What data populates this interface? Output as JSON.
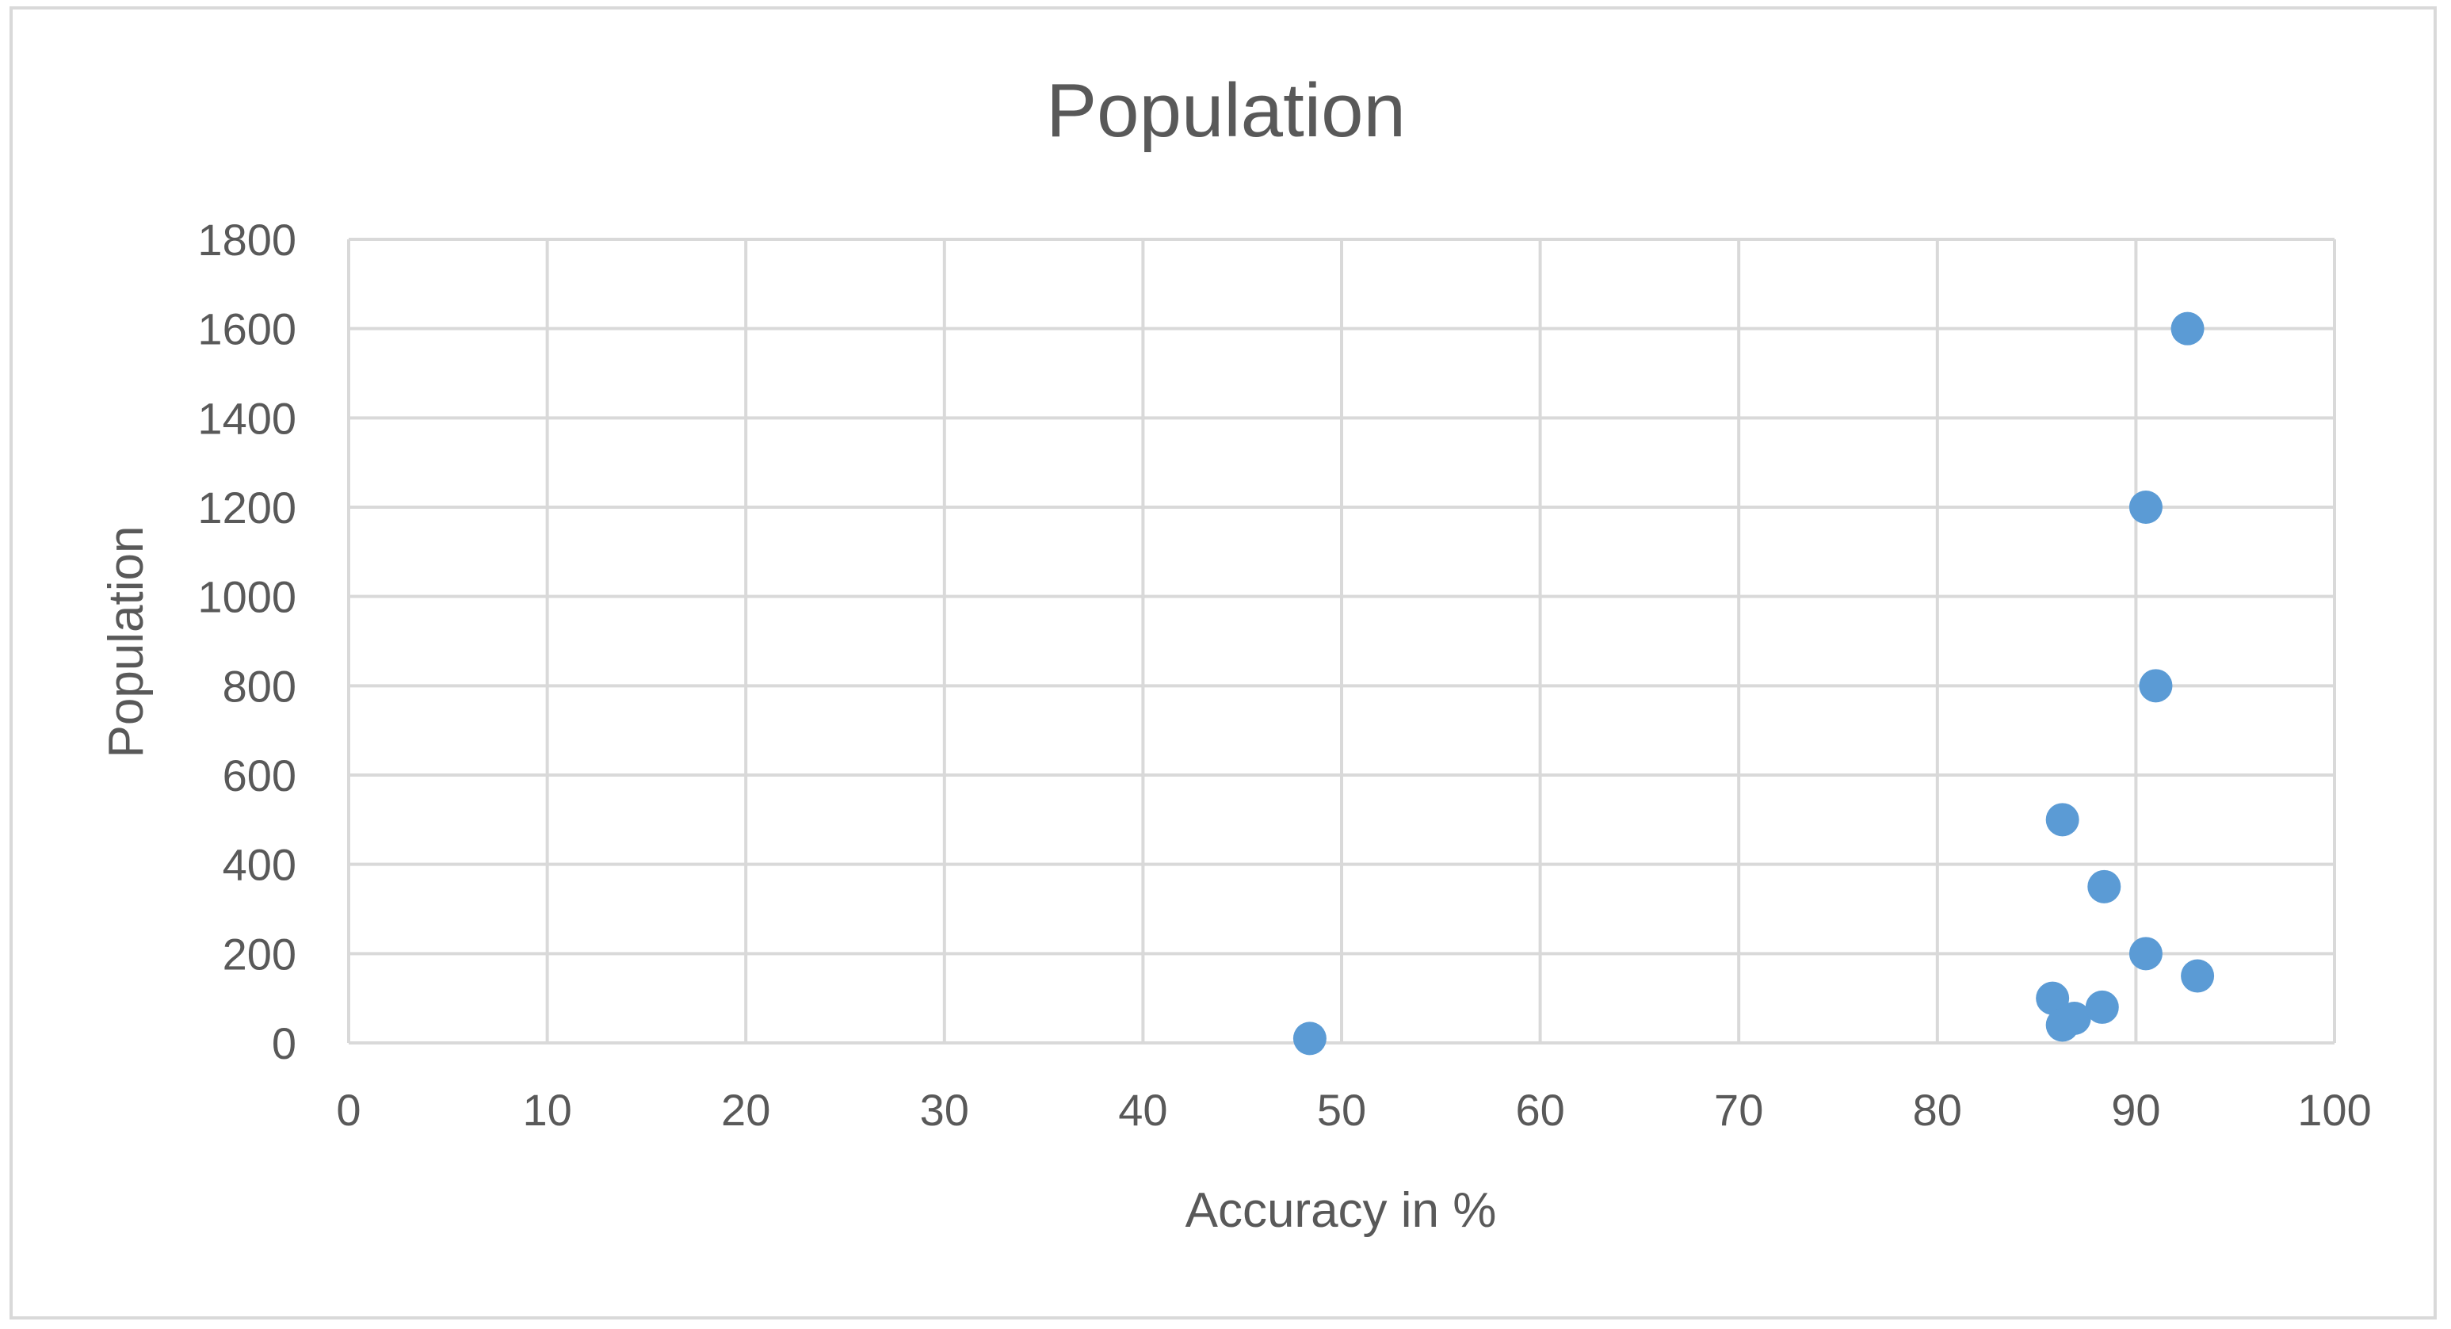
{
  "chart_data": {
    "type": "scatter",
    "title": "Population",
    "xlabel": "Accuracy in %",
    "ylabel": "Population",
    "xlim": [
      0,
      100
    ],
    "ylim": [
      0,
      1800
    ],
    "x_ticks": [
      0,
      10,
      20,
      30,
      40,
      50,
      60,
      70,
      80,
      90,
      100
    ],
    "y_ticks": [
      0,
      200,
      400,
      600,
      800,
      1000,
      1200,
      1400,
      1600,
      1800
    ],
    "grid": true,
    "legend": "none",
    "color": "#5b9bd5",
    "series": [
      {
        "points": [
          {
            "x": 48.4,
            "y": 10
          },
          {
            "x": 85.8,
            "y": 100
          },
          {
            "x": 86.3,
            "y": 40
          },
          {
            "x": 86.9,
            "y": 55
          },
          {
            "x": 88.3,
            "y": 80
          },
          {
            "x": 86.3,
            "y": 500
          },
          {
            "x": 88.4,
            "y": 350
          },
          {
            "x": 90.5,
            "y": 200
          },
          {
            "x": 93.1,
            "y": 150
          },
          {
            "x": 91.0,
            "y": 800
          },
          {
            "x": 90.5,
            "y": 1200
          },
          {
            "x": 92.6,
            "y": 1600
          }
        ]
      }
    ]
  }
}
